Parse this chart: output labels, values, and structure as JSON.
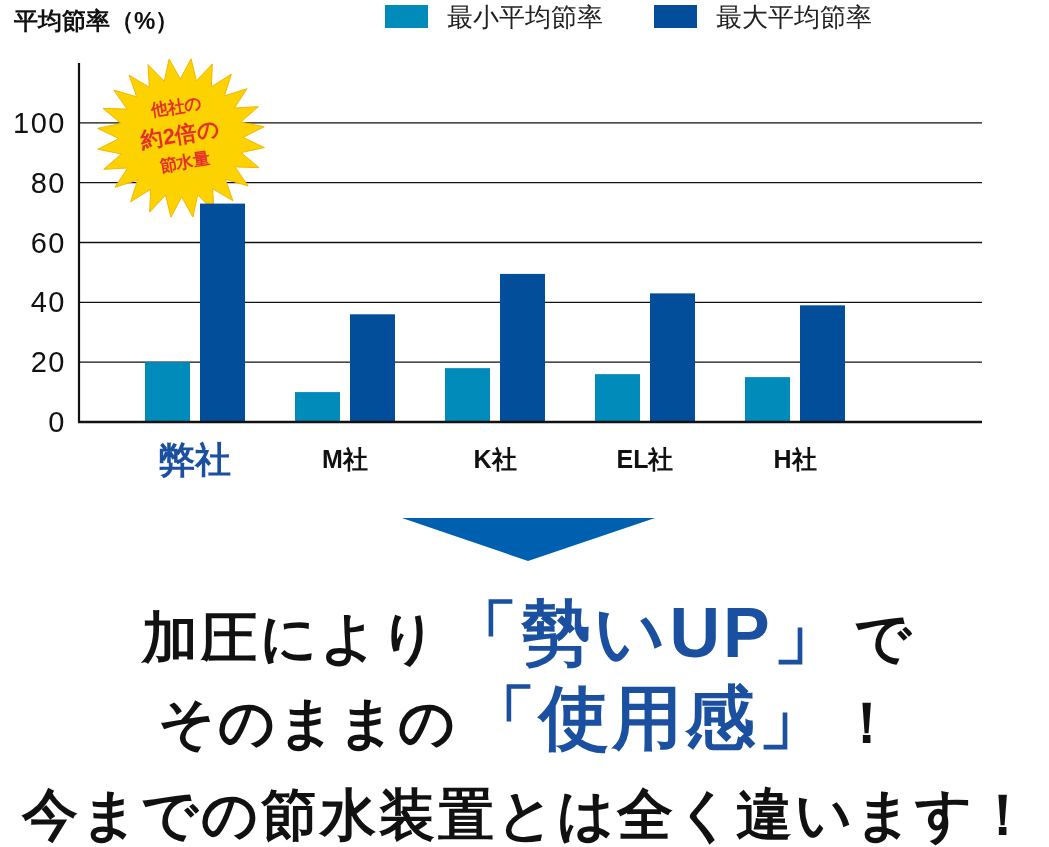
{
  "chart_data": {
    "type": "bar",
    "ylabel": "平均節率（%）",
    "categories": [
      "弊社",
      "M社",
      "K社",
      "EL社",
      "H社"
    ],
    "series": [
      {
        "name": "最小平均節率",
        "color": "#008bbb",
        "values": [
          20,
          10,
          18,
          16,
          15
        ]
      },
      {
        "name": "最大平均節率",
        "color": "#024e9a",
        "values": [
          73,
          36,
          49.5,
          43,
          39
        ]
      }
    ],
    "ylim": [
      0,
      120
    ],
    "yticks": [
      0,
      20,
      40,
      60,
      80,
      100
    ],
    "grid": "y",
    "legend": "top",
    "annotations": [
      "他社の",
      "約2倍の",
      "節水量",
      "加圧により",
      "「勢いUP」",
      "で",
      "そのままの",
      "「使用感」",
      "！",
      "今までの節水装置とは全く違います！"
    ]
  }
}
